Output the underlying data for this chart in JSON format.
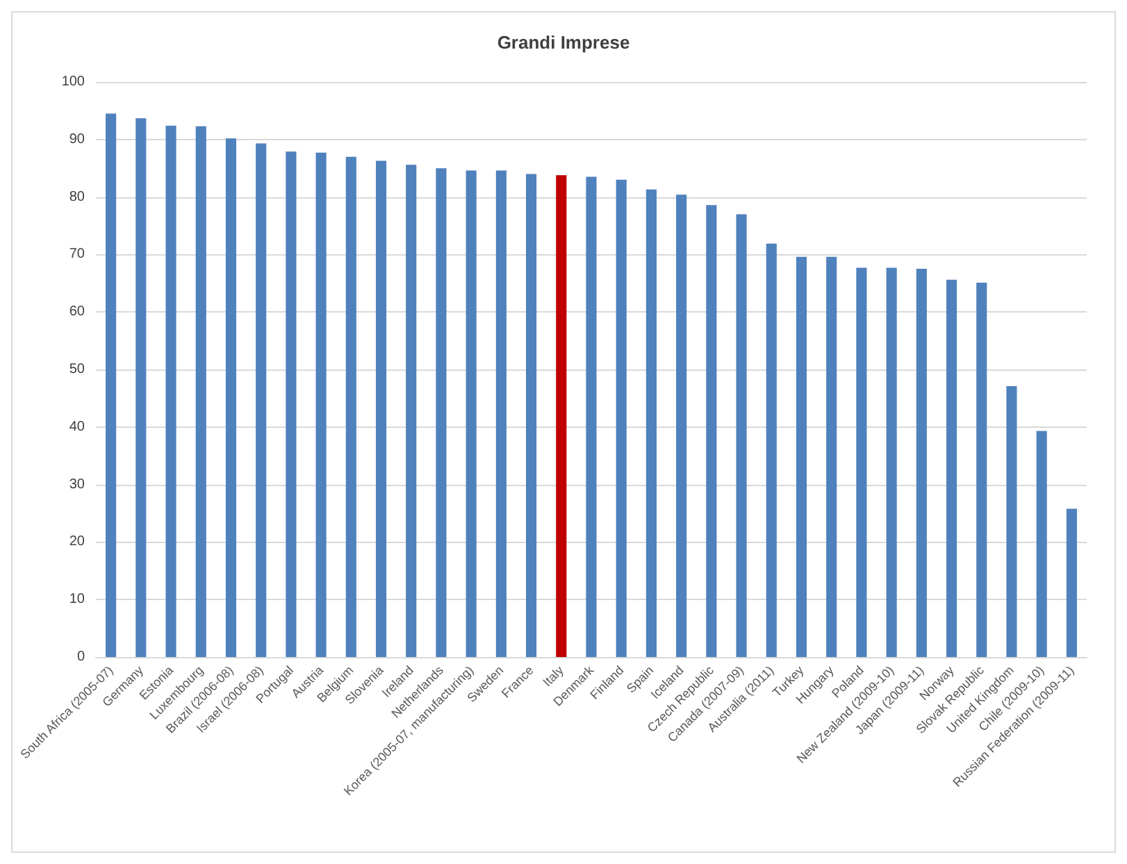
{
  "chart_data": {
    "type": "bar",
    "title": "Grandi Imprese",
    "categories": [
      "South Africa (2005-07)",
      "Germany",
      "Estonia",
      "Luxembourg",
      "Brazil (2006-08)",
      "Israel (2006-08)",
      "Portugal",
      "Austria",
      "Belgium",
      "Slovenia",
      "Ireland",
      "Netherlands",
      "Korea (2005-07, manufacturing)",
      "Sweden",
      "France",
      "Italy",
      "Denmark",
      "Finland",
      "Spain",
      "Iceland",
      "Czech Republic",
      "Canada (2007-09)",
      "Australia (2011)",
      "Turkey",
      "Hungary",
      "Poland",
      "New Zealand (2009-10)",
      "Japan (2009-11)",
      "Norway",
      "Slovak Republic",
      "United Kingdom",
      "Chile (2009-10)",
      "Russian Federation (2009-11)"
    ],
    "values": [
      94.5,
      93.7,
      92.4,
      92.3,
      90.2,
      89.3,
      87.9,
      87.7,
      87.0,
      86.3,
      85.6,
      85.0,
      84.6,
      84.6,
      84.0,
      83.8,
      83.5,
      83.0,
      81.3,
      80.4,
      78.6,
      77.0,
      71.9,
      69.6,
      69.6,
      67.7,
      67.7,
      67.5,
      65.6,
      65.1,
      47.1,
      39.3,
      25.8
    ],
    "colors": [
      "#4f81bd",
      "#4f81bd",
      "#4f81bd",
      "#4f81bd",
      "#4f81bd",
      "#4f81bd",
      "#4f81bd",
      "#4f81bd",
      "#4f81bd",
      "#4f81bd",
      "#4f81bd",
      "#4f81bd",
      "#4f81bd",
      "#4f81bd",
      "#4f81bd",
      "#c00000",
      "#4f81bd",
      "#4f81bd",
      "#4f81bd",
      "#4f81bd",
      "#4f81bd",
      "#4f81bd",
      "#4f81bd",
      "#4f81bd",
      "#4f81bd",
      "#4f81bd",
      "#4f81bd",
      "#4f81bd",
      "#4f81bd",
      "#4f81bd",
      "#4f81bd",
      "#4f81bd",
      "#4f81bd"
    ],
    "ylim": [
      0,
      100
    ],
    "yticks": [
      0,
      10,
      20,
      30,
      40,
      50,
      60,
      70,
      80,
      90,
      100
    ],
    "grid": "y"
  }
}
